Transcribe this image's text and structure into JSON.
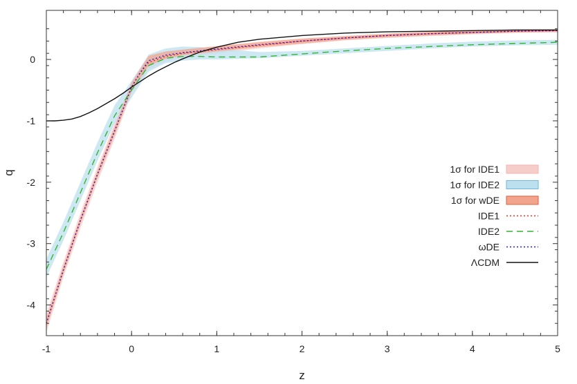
{
  "chart_data": {
    "type": "line",
    "title": "",
    "xlabel": "z",
    "ylabel": "q",
    "xlim": [
      -1,
      5
    ],
    "ylim": [
      -4.5,
      0.8
    ],
    "xticks": [
      -1,
      0,
      1,
      2,
      3,
      4,
      5
    ],
    "yticks": [
      -4,
      -3,
      -2,
      -1,
      0
    ],
    "xtick_labels": [
      "-1",
      "0",
      "1",
      "2",
      "3",
      "4",
      "5"
    ],
    "ytick_labels": [
      "-4",
      "-3",
      "-2",
      "-1",
      "0"
    ],
    "grid": false,
    "legend_position": "right",
    "bands": [
      {
        "name": "1σ for IDE1",
        "color": "#f7cdc9",
        "stroke": "#f3b5b0",
        "x": [
          -1,
          -0.8,
          -0.6,
          -0.4,
          -0.2,
          0,
          0.2,
          0.4,
          0.6,
          0.8,
          1,
          1.5,
          2,
          2.5,
          3,
          3.5,
          4,
          4.5,
          5
        ],
        "lower": [
          -4.45,
          -3.55,
          -2.75,
          -2.0,
          -1.3,
          -0.55,
          -0.17,
          -0.03,
          0.03,
          0.07,
          0.1,
          0.18,
          0.25,
          0.31,
          0.35,
          0.38,
          0.41,
          0.43,
          0.44
        ],
        "upper": [
          -4.15,
          -3.3,
          -2.5,
          -1.75,
          -1.05,
          -0.35,
          0.03,
          0.12,
          0.16,
          0.19,
          0.22,
          0.29,
          0.34,
          0.38,
          0.42,
          0.45,
          0.47,
          0.49,
          0.5
        ]
      },
      {
        "name": "1σ for IDE2",
        "color": "#bde0ef",
        "stroke": "#8ec8e3",
        "x": [
          -1,
          -0.8,
          -0.6,
          -0.4,
          -0.2,
          0,
          0.2,
          0.4,
          0.6,
          0.8,
          1,
          1.5,
          2,
          2.5,
          3,
          3.5,
          4,
          4.5,
          5
        ],
        "lower": [
          -3.55,
          -2.95,
          -2.3,
          -1.65,
          -1.05,
          -0.62,
          -0.2,
          -0.06,
          -0.02,
          0.0,
          0.0,
          0.02,
          0.06,
          0.1,
          0.14,
          0.18,
          0.21,
          0.23,
          0.24
        ],
        "upper": [
          -3.25,
          -2.65,
          -2.0,
          -1.35,
          -0.75,
          -0.35,
          0.08,
          0.18,
          0.21,
          0.2,
          0.18,
          0.12,
          0.14,
          0.18,
          0.22,
          0.26,
          0.29,
          0.31,
          0.32
        ]
      },
      {
        "name": "1σ for wDE",
        "color": "#f2a58e",
        "stroke": "#e0603a",
        "x": [
          -1,
          -0.8,
          -0.6,
          -0.4,
          -0.2,
          0,
          0.2,
          0.4,
          0.6,
          0.8,
          1,
          1.5,
          2,
          2.5,
          3,
          3.5,
          4,
          4.5,
          5
        ],
        "lower": [
          -4.38,
          -3.5,
          -2.68,
          -1.93,
          -1.24,
          -0.52,
          -0.1,
          0.01,
          0.07,
          0.1,
          0.13,
          0.2,
          0.26,
          0.32,
          0.36,
          0.39,
          0.42,
          0.44,
          0.45
        ],
        "upper": [
          -4.22,
          -3.36,
          -2.56,
          -1.81,
          -1.1,
          -0.38,
          0.06,
          0.13,
          0.16,
          0.19,
          0.21,
          0.28,
          0.34,
          0.38,
          0.42,
          0.45,
          0.47,
          0.48,
          0.49
        ]
      }
    ],
    "series": [
      {
        "name": "IDE1",
        "color": "#e8281f",
        "dash": "2,3",
        "x": [
          -1,
          -0.8,
          -0.6,
          -0.4,
          -0.2,
          0,
          0.1,
          0.2,
          0.4,
          0.6,
          0.8,
          1,
          1.5,
          2,
          2.5,
          3,
          3.5,
          4,
          4.5,
          5
        ],
        "y": [
          -4.3,
          -3.43,
          -2.62,
          -1.87,
          -1.17,
          -0.45,
          -0.22,
          -0.05,
          0.05,
          0.1,
          0.13,
          0.16,
          0.23,
          0.3,
          0.35,
          0.39,
          0.42,
          0.44,
          0.46,
          0.47
        ]
      },
      {
        "name": "IDE2",
        "color": "#2fb52f",
        "dash": "9,6",
        "x": [
          -1,
          -0.8,
          -0.6,
          -0.4,
          -0.2,
          0,
          0.1,
          0.2,
          0.4,
          0.6,
          0.8,
          1,
          1.5,
          2,
          2.5,
          3,
          3.5,
          4,
          4.5,
          5
        ],
        "y": [
          -3.42,
          -2.82,
          -2.17,
          -1.52,
          -0.92,
          -0.5,
          -0.3,
          -0.1,
          0.02,
          0.05,
          0.05,
          0.04,
          0.04,
          0.09,
          0.14,
          0.18,
          0.21,
          0.24,
          0.26,
          0.28
        ]
      },
      {
        "name": "ωDE",
        "color": "#2020d0",
        "dash": "2,3",
        "x": [
          -1,
          -0.8,
          -0.6,
          -0.4,
          -0.2,
          0,
          0.1,
          0.2,
          0.4,
          0.6,
          0.8,
          1,
          1.5,
          2,
          2.5,
          3,
          3.5,
          4,
          4.5,
          5
        ],
        "y": [
          -4.3,
          -3.43,
          -2.62,
          -1.87,
          -1.17,
          -0.45,
          -0.22,
          -0.02,
          0.07,
          0.11,
          0.14,
          0.17,
          0.24,
          0.3,
          0.35,
          0.39,
          0.42,
          0.44,
          0.46,
          0.47
        ]
      },
      {
        "name": "ΛCDM",
        "color": "#111111",
        "dash": "",
        "x": [
          -1,
          -0.9,
          -0.8,
          -0.7,
          -0.6,
          -0.5,
          -0.4,
          -0.3,
          -0.2,
          -0.1,
          0,
          0.1,
          0.2,
          0.3,
          0.4,
          0.5,
          0.6,
          0.8,
          1,
          1.25,
          1.5,
          2,
          2.5,
          3,
          3.5,
          4,
          4.5,
          5
        ],
        "y": [
          -1.0,
          -1.0,
          -0.99,
          -0.97,
          -0.93,
          -0.87,
          -0.8,
          -0.72,
          -0.64,
          -0.55,
          -0.45,
          -0.36,
          -0.27,
          -0.19,
          -0.12,
          -0.05,
          0.01,
          0.12,
          0.2,
          0.28,
          0.33,
          0.39,
          0.43,
          0.45,
          0.46,
          0.47,
          0.48,
          0.48
        ]
      }
    ],
    "legend_entries": [
      {
        "label": "1σ for IDE1",
        "kind": "band",
        "fill": "#f7cdc9",
        "stroke": "#f3b5b0"
      },
      {
        "label": "1σ for IDE2",
        "kind": "band",
        "fill": "#bde0ef",
        "stroke": "#6db7de"
      },
      {
        "label": "1σ for wDE",
        "kind": "band",
        "fill": "#f2a58e",
        "stroke": "#e0603a"
      },
      {
        "label": "IDE1",
        "kind": "line",
        "stroke": "#e8281f",
        "dash": "2,3"
      },
      {
        "label": "IDE2",
        "kind": "line",
        "stroke": "#2fb52f",
        "dash": "9,6"
      },
      {
        "label": "ωDE",
        "kind": "line",
        "stroke": "#2020d0",
        "dash": "2,3"
      },
      {
        "label": "ΛCDM",
        "kind": "line",
        "stroke": "#111111",
        "dash": ""
      }
    ]
  }
}
